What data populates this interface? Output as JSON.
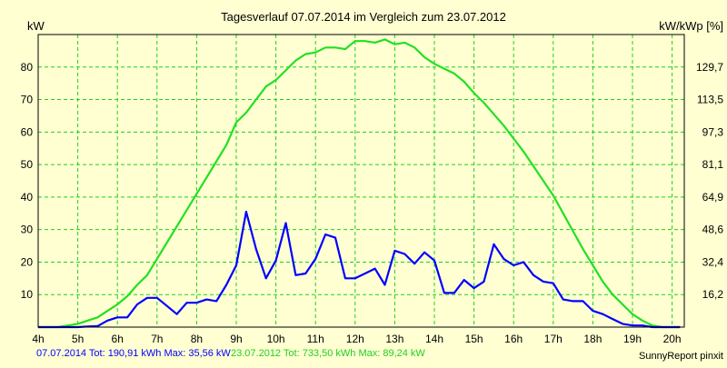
{
  "chart_data": {
    "type": "line",
    "title": "Tagesverlauf 07.07.2014 im Vergleich zum 23.07.2012",
    "ylabel_left": "kW",
    "ylabel_right": "kW/kWp [%]",
    "ylim": [
      0,
      90
    ],
    "xlim": [
      4,
      20.2
    ],
    "x_ticks": [
      "4h",
      "5h",
      "6h",
      "7h",
      "8h",
      "9h",
      "10h",
      "11h",
      "12h",
      "13h",
      "14h",
      "15h",
      "16h",
      "17h",
      "18h",
      "19h",
      "20h"
    ],
    "y_ticks_left": [
      10,
      20,
      30,
      40,
      50,
      60,
      70,
      80
    ],
    "y_ticks_right": [
      "16,2",
      "32,4",
      "48,6",
      "64,9",
      "81,1",
      "97,3",
      "113,5",
      "129,7"
    ],
    "grid": true,
    "series": [
      {
        "name": "07.07.2014",
        "color": "#0000ff",
        "points": [
          [
            4,
            0
          ],
          [
            4.25,
            0
          ],
          [
            4.5,
            0
          ],
          [
            4.75,
            0
          ],
          [
            5,
            0
          ],
          [
            5.25,
            0.2
          ],
          [
            5.5,
            0.3
          ],
          [
            5.75,
            2
          ],
          [
            6,
            3
          ],
          [
            6.25,
            3
          ],
          [
            6.5,
            7
          ],
          [
            6.75,
            9
          ],
          [
            7,
            9
          ],
          [
            7.25,
            6.5
          ],
          [
            7.5,
            4
          ],
          [
            7.75,
            7.5
          ],
          [
            8,
            7.5
          ],
          [
            8.25,
            8.5
          ],
          [
            8.5,
            8
          ],
          [
            8.75,
            13
          ],
          [
            9,
            19
          ],
          [
            9.25,
            35.5
          ],
          [
            9.5,
            24
          ],
          [
            9.75,
            15
          ],
          [
            10,
            20.5
          ],
          [
            10.25,
            32
          ],
          [
            10.5,
            16
          ],
          [
            10.75,
            16.5
          ],
          [
            11,
            21
          ],
          [
            11.25,
            28.5
          ],
          [
            11.5,
            27.5
          ],
          [
            11.75,
            15
          ],
          [
            12,
            15
          ],
          [
            12.25,
            16.5
          ],
          [
            12.5,
            18
          ],
          [
            12.75,
            13
          ],
          [
            13,
            23.5
          ],
          [
            13.25,
            22.5
          ],
          [
            13.5,
            19.5
          ],
          [
            13.75,
            23
          ],
          [
            14,
            20.5
          ],
          [
            14.25,
            10.5
          ],
          [
            14.5,
            10.5
          ],
          [
            14.75,
            14.5
          ],
          [
            15,
            12
          ],
          [
            15.25,
            14
          ],
          [
            15.5,
            25.5
          ],
          [
            15.75,
            21
          ],
          [
            16,
            19
          ],
          [
            16.25,
            20
          ],
          [
            16.5,
            16
          ],
          [
            16.75,
            14
          ],
          [
            17,
            13.5
          ],
          [
            17.25,
            8.5
          ],
          [
            17.5,
            8
          ],
          [
            17.75,
            8
          ],
          [
            18,
            5
          ],
          [
            18.25,
            4
          ],
          [
            18.5,
            2.5
          ],
          [
            18.75,
            1
          ],
          [
            19,
            0.5
          ],
          [
            19.25,
            0.5
          ],
          [
            19.5,
            0
          ],
          [
            19.75,
            0
          ],
          [
            20,
            0
          ],
          [
            20.2,
            0
          ]
        ]
      },
      {
        "name": "23.07.2012",
        "color": "#22e022",
        "points": [
          [
            4,
            0
          ],
          [
            4.25,
            0
          ],
          [
            4.5,
            0
          ],
          [
            4.75,
            0.5
          ],
          [
            5,
            1
          ],
          [
            5.25,
            2
          ],
          [
            5.5,
            3
          ],
          [
            5.75,
            5
          ],
          [
            6,
            7
          ],
          [
            6.25,
            9.5
          ],
          [
            6.5,
            13
          ],
          [
            6.75,
            16
          ],
          [
            7,
            21
          ],
          [
            7.25,
            26
          ],
          [
            7.5,
            31
          ],
          [
            7.75,
            36
          ],
          [
            8,
            41
          ],
          [
            8.25,
            46
          ],
          [
            8.5,
            51
          ],
          [
            8.75,
            56
          ],
          [
            9,
            63
          ],
          [
            9.25,
            66
          ],
          [
            9.5,
            70
          ],
          [
            9.75,
            74
          ],
          [
            10,
            76
          ],
          [
            10.25,
            79
          ],
          [
            10.5,
            82
          ],
          [
            10.75,
            84
          ],
          [
            11,
            84.5
          ],
          [
            11.25,
            86
          ],
          [
            11.5,
            86
          ],
          [
            11.75,
            85.5
          ],
          [
            12,
            88
          ],
          [
            12.25,
            88
          ],
          [
            12.5,
            87.5
          ],
          [
            12.75,
            88.5
          ],
          [
            13,
            87
          ],
          [
            13.25,
            87.5
          ],
          [
            13.5,
            86
          ],
          [
            13.75,
            83
          ],
          [
            14,
            81
          ],
          [
            14.25,
            79.5
          ],
          [
            14.5,
            78
          ],
          [
            14.75,
            75.5
          ],
          [
            15,
            72
          ],
          [
            15.25,
            69
          ],
          [
            15.5,
            65.5
          ],
          [
            15.75,
            62
          ],
          [
            16,
            58
          ],
          [
            16.25,
            54
          ],
          [
            16.5,
            49.5
          ],
          [
            16.75,
            45
          ],
          [
            17,
            40.5
          ],
          [
            17.25,
            35
          ],
          [
            17.5,
            29.5
          ],
          [
            17.75,
            24
          ],
          [
            18,
            19
          ],
          [
            18.25,
            14
          ],
          [
            18.5,
            10
          ],
          [
            18.75,
            7
          ],
          [
            19,
            4
          ],
          [
            19.25,
            2
          ],
          [
            19.5,
            0.5
          ],
          [
            19.75,
            0
          ],
          [
            20,
            0
          ],
          [
            20.2,
            0
          ]
        ]
      }
    ],
    "footer": {
      "left_series1": "07.07.2014 Tot: 190,91 kWh Max: 35,56 kW",
      "left_series2": "23.07.2012 Tot: 733,50 kWh Max: 89,24 kW",
      "right": "SunnyReport pinxit"
    }
  }
}
